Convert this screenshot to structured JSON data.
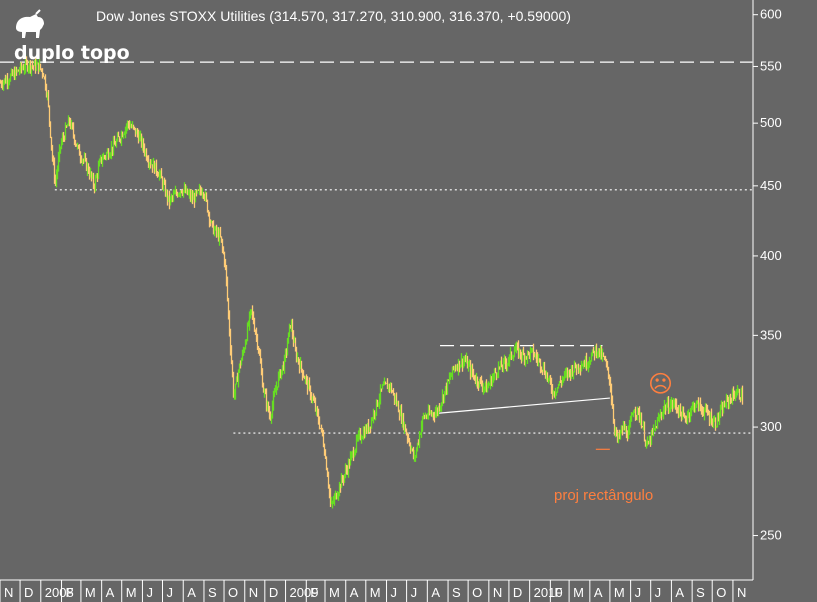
{
  "chart_data": {
    "type": "candlestick",
    "title": "Dow Jones STOXX Utilities (314.570, 317.270, 310.900, 316.370, +0.59000)",
    "y_scale": "log",
    "ylim": [
      232,
      615
    ],
    "y_ticks": [
      250,
      300,
      350,
      400,
      450,
      500,
      550,
      600
    ],
    "x_months": [
      {
        "label": "N",
        "date": "2007-11"
      },
      {
        "label": "D",
        "date": "2007-12"
      },
      {
        "label": "2008",
        "date": "2008-01"
      },
      {
        "label": "F",
        "date": "2008-02"
      },
      {
        "label": "M",
        "date": "2008-03"
      },
      {
        "label": "A",
        "date": "2008-04"
      },
      {
        "label": "M",
        "date": "2008-05"
      },
      {
        "label": "J",
        "date": "2008-06"
      },
      {
        "label": "J",
        "date": "2008-07"
      },
      {
        "label": "A",
        "date": "2008-08"
      },
      {
        "label": "S",
        "date": "2008-09"
      },
      {
        "label": "O",
        "date": "2008-10"
      },
      {
        "label": "N",
        "date": "2008-11"
      },
      {
        "label": "D",
        "date": "2008-12"
      },
      {
        "label": "2009",
        "date": "2009-01"
      },
      {
        "label": "F",
        "date": "2009-02"
      },
      {
        "label": "M",
        "date": "2009-03"
      },
      {
        "label": "A",
        "date": "2009-04"
      },
      {
        "label": "M",
        "date": "2009-05"
      },
      {
        "label": "J",
        "date": "2009-06"
      },
      {
        "label": "J",
        "date": "2009-07"
      },
      {
        "label": "A",
        "date": "2009-08"
      },
      {
        "label": "S",
        "date": "2009-09"
      },
      {
        "label": "O",
        "date": "2009-10"
      },
      {
        "label": "N",
        "date": "2009-11"
      },
      {
        "label": "D",
        "date": "2009-12"
      },
      {
        "label": "2010",
        "date": "2010-01"
      },
      {
        "label": "F",
        "date": "2010-02"
      },
      {
        "label": "M",
        "date": "2010-03"
      },
      {
        "label": "A",
        "date": "2010-04"
      },
      {
        "label": "M",
        "date": "2010-05"
      },
      {
        "label": "J",
        "date": "2010-06"
      },
      {
        "label": "J",
        "date": "2010-07"
      },
      {
        "label": "A",
        "date": "2010-08"
      },
      {
        "label": "S",
        "date": "2010-09"
      },
      {
        "label": "O",
        "date": "2010-10"
      },
      {
        "label": "N",
        "date": "2010-11"
      }
    ],
    "price_path": [
      [
        "2007-11-01",
        535
      ],
      [
        "2007-11-20",
        542
      ],
      [
        "2007-12-10",
        552
      ],
      [
        "2007-12-28",
        550
      ],
      [
        "2008-01-04",
        545
      ],
      [
        "2008-01-10",
        525
      ],
      [
        "2008-01-18",
        470
      ],
      [
        "2008-01-22",
        452
      ],
      [
        "2008-01-30",
        482
      ],
      [
        "2008-02-12",
        502
      ],
      [
        "2008-02-25",
        478
      ],
      [
        "2008-03-12",
        462
      ],
      [
        "2008-03-20",
        450
      ],
      [
        "2008-03-30",
        470
      ],
      [
        "2008-04-20",
        482
      ],
      [
        "2008-05-10",
        500
      ],
      [
        "2008-05-25",
        490
      ],
      [
        "2008-06-10",
        470
      ],
      [
        "2008-06-25",
        460
      ],
      [
        "2008-07-10",
        438
      ],
      [
        "2008-07-28",
        448
      ],
      [
        "2008-08-15",
        440
      ],
      [
        "2008-08-30",
        448
      ],
      [
        "2008-09-12",
        420
      ],
      [
        "2008-09-25",
        412
      ],
      [
        "2008-10-02",
        395
      ],
      [
        "2008-10-08",
        355
      ],
      [
        "2008-10-15",
        315
      ],
      [
        "2008-10-22",
        330
      ],
      [
        "2008-10-29",
        340
      ],
      [
        "2008-11-10",
        365
      ],
      [
        "2008-11-20",
        345
      ],
      [
        "2008-11-28",
        320
      ],
      [
        "2008-12-08",
        305
      ],
      [
        "2008-12-20",
        325
      ],
      [
        "2008-12-30",
        335
      ],
      [
        "2009-01-08",
        358
      ],
      [
        "2009-01-15",
        340
      ],
      [
        "2009-01-30",
        325
      ],
      [
        "2009-02-12",
        312
      ],
      [
        "2009-02-25",
        295
      ],
      [
        "2009-03-05",
        275
      ],
      [
        "2009-03-09",
        262
      ],
      [
        "2009-03-20",
        270
      ],
      [
        "2009-04-05",
        282
      ],
      [
        "2009-04-20",
        295
      ],
      [
        "2009-05-05",
        300
      ],
      [
        "2009-05-25",
        320
      ],
      [
        "2009-06-05",
        322
      ],
      [
        "2009-06-20",
        308
      ],
      [
        "2009-07-05",
        292
      ],
      [
        "2009-07-12",
        284
      ],
      [
        "2009-07-25",
        305
      ],
      [
        "2009-08-15",
        308
      ],
      [
        "2009-08-28",
        320
      ],
      [
        "2009-09-10",
        332
      ],
      [
        "2009-09-25",
        336
      ],
      [
        "2009-10-10",
        326
      ],
      [
        "2009-10-28",
        320
      ],
      [
        "2009-11-12",
        330
      ],
      [
        "2009-11-28",
        335
      ],
      [
        "2009-12-10",
        342
      ],
      [
        "2009-12-22",
        338
      ],
      [
        "2010-01-05",
        340
      ],
      [
        "2010-01-20",
        332
      ],
      [
        "2010-02-05",
        318
      ],
      [
        "2010-02-20",
        326
      ],
      [
        "2010-03-10",
        332
      ],
      [
        "2010-03-28",
        335
      ],
      [
        "2010-04-10",
        342
      ],
      [
        "2010-04-22",
        336
      ],
      [
        "2010-04-30",
        325
      ],
      [
        "2010-05-07",
        300
      ],
      [
        "2010-05-12",
        293
      ],
      [
        "2010-05-20",
        300
      ],
      [
        "2010-05-28",
        296
      ],
      [
        "2010-06-05",
        310
      ],
      [
        "2010-06-15",
        305
      ],
      [
        "2010-06-25",
        290
      ],
      [
        "2010-07-05",
        298
      ],
      [
        "2010-07-20",
        310
      ],
      [
        "2010-08-05",
        312
      ],
      [
        "2010-08-20",
        304
      ],
      [
        "2010-09-05",
        312
      ],
      [
        "2010-09-20",
        308
      ],
      [
        "2010-10-05",
        302
      ],
      [
        "2010-10-20",
        312
      ],
      [
        "2010-11-05",
        318
      ],
      [
        "2010-11-15",
        316
      ]
    ],
    "annotations": {
      "label_top": "duplo topo",
      "label_projection": "proj rectângulo",
      "smiley": "☹",
      "lines": [
        {
          "name": "resistance-550",
          "style": "dashed",
          "color": "#ffffff",
          "from": [
            "2007-11-01",
            554
          ],
          "to": [
            "2010-11-30",
            554
          ]
        },
        {
          "name": "support-447",
          "style": "dotted",
          "color": "#ffffff",
          "from": [
            "2008-01-22",
            447
          ],
          "to": [
            "2010-11-30",
            447
          ]
        },
        {
          "name": "support-297",
          "style": "dotted",
          "color": "#ffffff",
          "from": [
            "2008-10-15",
            297
          ],
          "to": [
            "2010-11-30",
            297
          ]
        },
        {
          "name": "rectangle-top",
          "style": "dashed",
          "color": "#ffffff",
          "from": [
            "2009-08-20",
            344
          ],
          "to": [
            "2010-04-20",
            344
          ]
        },
        {
          "name": "rectangle-bottom",
          "style": "solid",
          "color": "#ffffff",
          "from": [
            "2009-08-15",
            307
          ],
          "to": [
            "2010-05-01",
            315
          ]
        },
        {
          "name": "projection-target",
          "style": "dashed",
          "color": "#ff7f3f",
          "from": [
            "2010-04-10",
            289
          ],
          "to": [
            "2010-05-05",
            289
          ]
        }
      ]
    },
    "colors": {
      "up": "#66dd22",
      "down": "#ffcc77",
      "background": "#666666",
      "text": "#ffffff",
      "accent": "#ff7f3f"
    }
  }
}
